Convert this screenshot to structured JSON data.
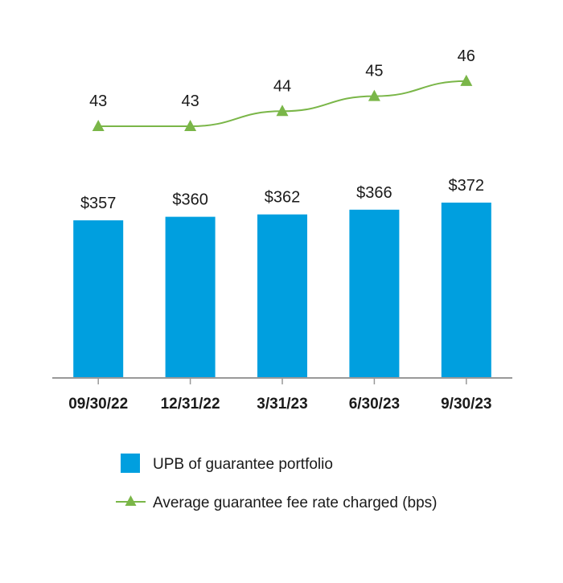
{
  "chart_data": {
    "type": "bar",
    "categories": [
      "09/30/22",
      "12/31/22",
      "3/31/23",
      "6/30/23",
      "9/30/23"
    ],
    "series": [
      {
        "name": "UPB of guarantee portfolio",
        "type": "bar",
        "values": [
          357,
          360,
          362,
          366,
          372
        ],
        "labels": [
          "$357",
          "$360",
          "$362",
          "$366",
          "$372"
        ],
        "color": "#009fdf"
      },
      {
        "name": "Average guarantee fee rate charged (bps)",
        "type": "line",
        "marker": "triangle",
        "values": [
          43,
          43,
          44,
          45,
          46
        ],
        "labels": [
          "43",
          "43",
          "44",
          "45",
          "46"
        ],
        "color": "#7ab648"
      }
    ],
    "title": "",
    "xlabel": "",
    "ylabel": "",
    "grid": false,
    "legend_position": "bottom"
  },
  "colors": {
    "axis": "#999999",
    "text": "#1a1a1a"
  }
}
